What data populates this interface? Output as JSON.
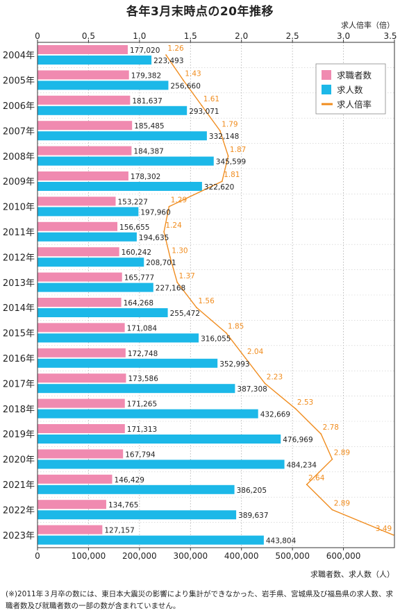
{
  "chart_data": {
    "type": "bar",
    "title": "各年3月末時点の20年推移",
    "categories": [
      "2004年",
      "2005年",
      "2006年",
      "2007年",
      "2008年",
      "2009年",
      "2010年",
      "2011年",
      "2012年",
      "2013年",
      "2014年",
      "2015年",
      "2016年",
      "2017年",
      "2018年",
      "2019年",
      "2020年",
      "2021年",
      "2022年",
      "2023年"
    ],
    "series": [
      {
        "name": "求職者数",
        "kind": "bar",
        "color": "#f08ab0",
        "values": [
          177020,
          179382,
          181637,
          185485,
          184387,
          178302,
          153227,
          156655,
          160242,
          165777,
          164268,
          171084,
          172748,
          173586,
          171265,
          171313,
          167794,
          146429,
          134765,
          127157
        ],
        "labels": [
          "177,020",
          "179,382",
          "181,637",
          "185,485",
          "184,387",
          "178,302",
          "153,227",
          "156,655",
          "160,242",
          "165,777",
          "164,268",
          "171,084",
          "172,748",
          "173,586",
          "171,265",
          "171,313",
          "167,794",
          "146,429",
          "134,765",
          "127,157"
        ]
      },
      {
        "name": "求人数",
        "kind": "bar",
        "color": "#1cb8e8",
        "values": [
          223493,
          256660,
          293071,
          332148,
          345599,
          322620,
          197960,
          194635,
          208701,
          227168,
          255472,
          316055,
          352993,
          387308,
          432669,
          476969,
          484234,
          386205,
          389637,
          443804
        ],
        "labels": [
          "223,493",
          "256,660",
          "293,071",
          "332,148",
          "345,599",
          "322,620",
          "197,960",
          "194,635",
          "208,701",
          "227,168",
          "255,472",
          "316,055",
          "352,993",
          "387,308",
          "432,669",
          "476,969",
          "484,234",
          "386,205",
          "389,637",
          "443,804"
        ]
      },
      {
        "name": "求人倍率",
        "kind": "line",
        "color": "#f08c1e",
        "axis": "top",
        "values": [
          1.26,
          1.43,
          1.61,
          1.79,
          1.87,
          1.81,
          1.29,
          1.24,
          1.3,
          1.37,
          1.56,
          1.85,
          2.04,
          2.23,
          2.53,
          2.78,
          2.89,
          2.64,
          2.89,
          3.49
        ],
        "labels": [
          "1.26",
          "1.43",
          "1.61",
          "1.79",
          "1.87",
          "1.81",
          "1.29",
          "1.24",
          "1.30",
          "1.37",
          "1.56",
          "1.85",
          "2.04",
          "2.23",
          "2.53",
          "2.78",
          "2.89",
          "2.64",
          "2.89",
          "3.49"
        ]
      }
    ],
    "bottom_axis": {
      "label": "求職者数、求人数（人）",
      "range": [
        0,
        700000
      ],
      "ticks": [
        0,
        100000,
        200000,
        300000,
        400000,
        500000,
        600000
      ],
      "tick_labels": [
        "0",
        "100,000",
        "200,000",
        "300,000",
        "400,000",
        "500,000",
        "600,000"
      ]
    },
    "top_axis": {
      "label": "求人倍率（倍）",
      "range": [
        0,
        3.5
      ],
      "ticks": [
        0,
        0.5,
        1.0,
        1.5,
        2.0,
        2.5,
        3.0,
        3.5
      ],
      "tick_labels": [
        "0",
        "0.5",
        "1.0",
        "1.5",
        "2.0",
        "2.5",
        "3.0",
        "3.5"
      ]
    },
    "grid": true,
    "legend": {
      "position": "top-right",
      "entries": [
        "求職者数",
        "求人数",
        "求人倍率"
      ]
    }
  },
  "footnote": "(※)2011年３月卒の数には、東日本大震災の影響により集計ができなかった、岩手県、宮城県及び福島県の求人数、求職者数及び就職者数の一部の数が含まれていません。"
}
